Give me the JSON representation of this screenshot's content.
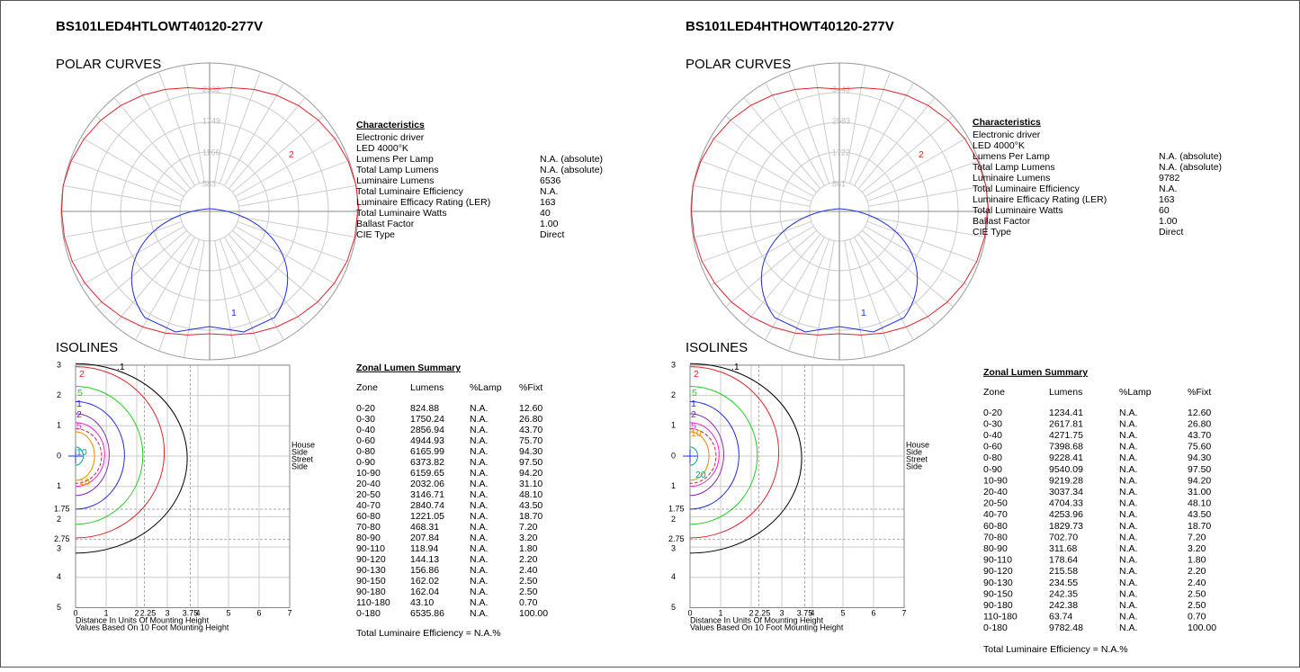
{
  "panels": [
    {
      "title": "BS101LED4HTLOWT40120-277V",
      "polar": {
        "heading": "POLAR CURVES",
        "ring_labels": [
          "583",
          "1166",
          "1749",
          "2332"
        ],
        "curve_labels": [
          "2",
          "1"
        ]
      },
      "characteristics": {
        "heading": "Characteristics",
        "rows": [
          [
            "Electronic driver"
          ],
          [
            "LED 4000°K"
          ],
          [
            "Lumens Per Lamp",
            "N.A. (absolute)"
          ],
          [
            "Total Lamp Lumens",
            "N.A. (absolute)"
          ],
          [
            "Luminaire Lumens",
            "6536"
          ],
          [
            "Total Luminaire Efficiency",
            "N.A."
          ],
          [
            " Luminaire Efficacy Rating (LER)",
            "163"
          ],
          [
            "Total Luminaire Watts",
            "40"
          ],
          [
            "Ballast Factor",
            "1.00"
          ],
          [
            "CIE Type",
            "Direct"
          ]
        ]
      },
      "isolines": {
        "heading": "ISOLINES",
        "y_labels": [
          "3",
          "2",
          "1",
          "0",
          "1",
          "1.75",
          "2",
          "2.75",
          "3",
          "4",
          "5"
        ],
        "x_labels": [
          "0",
          "1",
          "2",
          "2.25",
          "3",
          "3.75",
          "4",
          "5",
          "6",
          "7"
        ],
        "side_labels": [
          "House",
          "Side",
          "Street",
          "Side"
        ],
        "contour_labels": [
          "2",
          ".1",
          "5",
          "1",
          "2",
          "5",
          "10",
          "10"
        ],
        "caption": [
          "Distance In Units Of Mounting Height",
          "Values Based On 10 Foot Mounting Height"
        ]
      },
      "zonal": {
        "heading": "Zonal Lumen Summary",
        "columns": [
          "Zone",
          "Lumens",
          "%Lamp",
          "%Fixt"
        ],
        "rows": [
          [
            "0-20",
            "824.88",
            "N.A.",
            "12.60"
          ],
          [
            "0-30",
            "1750.24",
            "N.A.",
            "26.80"
          ],
          [
            "0-40",
            "2856.94",
            "N.A.",
            "43.70"
          ],
          [
            "0-60",
            "4944.93",
            "N.A.",
            "75.70"
          ],
          [
            "0-80",
            "6165.99",
            "N.A.",
            "94.30"
          ],
          [
            "0-90",
            "6373.82",
            "N.A.",
            "97.50"
          ],
          [
            "10-90",
            "6159.65",
            "N.A.",
            "94.20"
          ],
          [
            "20-40",
            "2032.06",
            "N.A.",
            "31.10"
          ],
          [
            "20-50",
            "3146.71",
            "N.A.",
            "48.10"
          ],
          [
            "40-70",
            "2840.74",
            "N.A.",
            "43.50"
          ],
          [
            "60-80",
            "1221.05",
            "N.A.",
            "18.70"
          ],
          [
            "70-80",
            "468.31",
            "N.A.",
            "7.20"
          ],
          [
            "80-90",
            "207.84",
            "N.A.",
            "3.20"
          ],
          [
            "90-110",
            "118.94",
            "N.A.",
            "1.80"
          ],
          [
            "90-120",
            "144.13",
            "N.A.",
            "2.20"
          ],
          [
            "90-130",
            "156.86",
            "N.A.",
            "2.40"
          ],
          [
            "90-150",
            "162.02",
            "N.A.",
            "2.50"
          ],
          [
            "90-180",
            "162.04",
            "N.A.",
            "2.50"
          ],
          [
            "110-180",
            "43.10",
            "N.A.",
            "0.70"
          ],
          [
            "0-180",
            "6535.86",
            "N.A.",
            "100.00"
          ]
        ],
        "footer": "Total Luminaire Efficiency = N.A.%"
      }
    },
    {
      "title": "BS101LED4HTHOWT40120-277V",
      "polar": {
        "heading": "POLAR CURVES",
        "ring_labels": [
          "861",
          "1722",
          "2583",
          "3443"
        ],
        "curve_labels": [
          "2",
          "1"
        ]
      },
      "characteristics": {
        "heading": "Characteristics",
        "rows": [
          [
            "Electronic driver"
          ],
          [
            "LED 4000°K"
          ],
          [
            "Lumens Per Lamp",
            "N.A. (absolute)"
          ],
          [
            "Total Lamp Lumens",
            "N.A. (absolute)"
          ],
          [
            "Luminaire Lumens",
            "9782"
          ],
          [
            "Total Luminaire Efficiency",
            "N.A."
          ],
          [
            "Luminaire Efficacy Rating (LER)",
            "163"
          ],
          [
            "Total Luminaire Watts",
            "60"
          ],
          [
            "Ballast Factor",
            "1.00"
          ],
          [
            "CIE Type",
            "Direct"
          ]
        ]
      },
      "isolines": {
        "heading": "ISOLINES",
        "y_labels": [
          "3",
          "2",
          "1",
          "0",
          "1",
          "1.75",
          "2",
          "2.75",
          "3",
          "4",
          "5"
        ],
        "x_labels": [
          "0",
          "1",
          "2",
          "2.25",
          "3",
          "3.75",
          "4",
          "5",
          "6",
          "7"
        ],
        "side_labels": [
          "House",
          "Side",
          "Street",
          "Side"
        ],
        "contour_labels": [
          "2",
          ".1",
          "5",
          "1",
          "2",
          "5",
          "10",
          "20"
        ],
        "caption": [
          "Distance In Units Of Mounting Height",
          "Values Based On 10 Foot Mounting Height"
        ]
      },
      "zonal": {
        "heading": "Zonal Lumen Summary",
        "columns": [
          "Zone",
          "Lumens",
          "%Lamp",
          "%Fixt"
        ],
        "rows": [
          [
            "0-20",
            "1234.41",
            "N.A.",
            "12.60"
          ],
          [
            "0-30",
            "2617.81",
            "N.A.",
            "26.80"
          ],
          [
            "0-40",
            "4271.75",
            "N.A.",
            "43.70"
          ],
          [
            "0-60",
            "7398.68",
            "N.A.",
            "75.60"
          ],
          [
            "0-80",
            "9228.41",
            "N.A.",
            "94.30"
          ],
          [
            "0-90",
            "9540.09",
            "N.A.",
            "97.50"
          ],
          [
            "10-90",
            "9219.28",
            "N.A.",
            "94.20"
          ],
          [
            "20-40",
            "3037.34",
            "N.A.",
            "31.00"
          ],
          [
            "20-50",
            "4704.33",
            "N.A.",
            "48.10"
          ],
          [
            "40-70",
            "4253.96",
            "N.A.",
            "43.50"
          ],
          [
            "60-80",
            "1829.73",
            "N.A.",
            "18.70"
          ],
          [
            "70-80",
            "702.70",
            "N.A.",
            "7.20"
          ],
          [
            "80-90",
            "311.68",
            "N.A.",
            "3.20"
          ],
          [
            "90-110",
            "178.64",
            "N.A.",
            "1.80"
          ],
          [
            "90-120",
            "215.58",
            "N.A.",
            "2.20"
          ],
          [
            "90-130",
            "234.55",
            "N.A.",
            "2.40"
          ],
          [
            "90-150",
            "242.35",
            "N.A.",
            "2.50"
          ],
          [
            "90-180",
            "242.38",
            "N.A.",
            "2.50"
          ],
          [
            "110-180",
            "63.74",
            "N.A.",
            "0.70"
          ],
          [
            "0-180",
            "9782.48",
            "N.A.",
            "100.00"
          ]
        ],
        "footer": "Total Luminaire Efficiency = N.A.%"
      }
    }
  ]
}
